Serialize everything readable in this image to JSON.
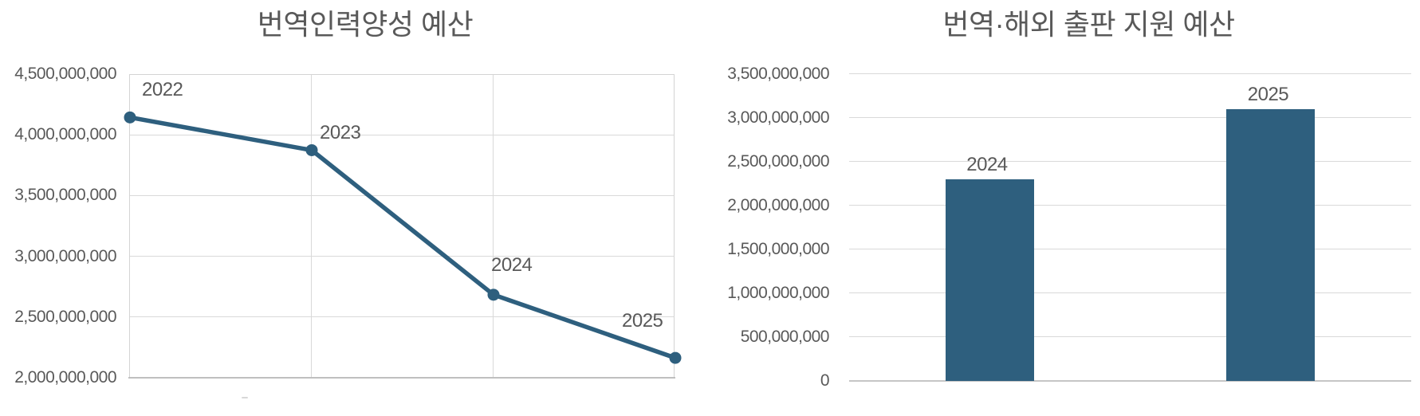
{
  "page": {
    "background": "#ffffff",
    "colors": {
      "series": "#2E5F7E",
      "title_text": "#595959",
      "axis_text": "#595959",
      "gridline": "#D9D9D9",
      "axis_line": "#BFBFBF"
    }
  },
  "chart_data": [
    {
      "type": "line",
      "title": "번역인력양성 예산",
      "categories": [
        "2022",
        "2023",
        "2024",
        "2025"
      ],
      "values": [
        4150000000,
        3880000000,
        2690000000,
        2170000000
      ],
      "xlabel": "",
      "ylabel": "",
      "ylim": [
        2000000000,
        4500000000
      ],
      "ytick_step": 500000000,
      "ytick_labels_top_to_bottom": [
        "4,500,000,000",
        "4,000,000,000",
        "3,500,000,000",
        "3,000,000,000",
        "2,500,000,000",
        "2,000,000,000"
      ],
      "grid": true,
      "legend": "none",
      "point_labels": [
        "2022",
        "2023",
        "2024",
        "2025"
      ],
      "series_color": "#2E5F7E",
      "marker": "circle"
    },
    {
      "type": "bar",
      "title": "번역·해외 출판 지원 예산",
      "categories": [
        "2024",
        "2025"
      ],
      "values": [
        2300000000,
        3100000000
      ],
      "xlabel": "",
      "ylabel": "",
      "ylim": [
        0,
        3500000000
      ],
      "ytick_step": 500000000,
      "ytick_labels_top_to_bottom": [
        "3,500,000,000",
        "3,000,000,000",
        "2,500,000,000",
        "2,000,000,000",
        "1,500,000,000",
        "1,000,000,000",
        "500,000,000",
        "0"
      ],
      "grid": true,
      "legend": "none",
      "bar_labels": [
        "2024",
        "2025"
      ],
      "series_color": "#2E5F7E"
    }
  ]
}
